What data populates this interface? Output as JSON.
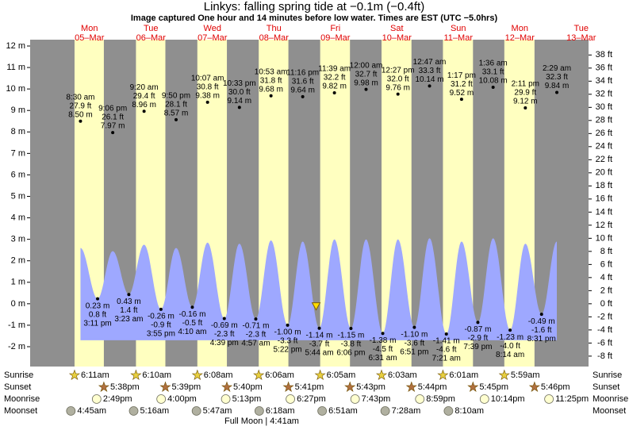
{
  "chart_data": {
    "type": "tide",
    "title": "Linkys: falling  spring tide at −0.1m (−0.4ft)",
    "subtitle": "Image captured One hour and 14 minutes before low water. Times are EST (UTC −5.0hrs)",
    "ylim": [
      -2,
      12
    ],
    "yticks": [
      {
        "value": -2,
        "label": "-2 m"
      },
      {
        "value": -1,
        "label": "-1 m"
      },
      {
        "value": 0,
        "label": "0 m"
      },
      {
        "value": 1,
        "label": "1 m"
      },
      {
        "value": 2,
        "label": "2 m"
      },
      {
        "value": 3,
        "label": "3 m"
      },
      {
        "value": 4,
        "label": "4 m"
      },
      {
        "value": 5,
        "label": "5 m"
      },
      {
        "value": 6,
        "label": "6 m"
      },
      {
        "value": 7,
        "label": "7 m"
      },
      {
        "value": 8,
        "label": "8 m"
      },
      {
        "value": 9,
        "label": "9 m"
      },
      {
        "value": 10,
        "label": "10 m"
      },
      {
        "value": 11,
        "label": "11 m"
      },
      {
        "value": 12,
        "label": "12 m"
      }
    ],
    "y2lim": [
      -6.56,
      39.37
    ],
    "y2ticks": [
      {
        "value": -8,
        "label": "-8 ft"
      },
      {
        "value": -6,
        "label": "-6 ft"
      },
      {
        "value": -4,
        "label": "-4 ft"
      },
      {
        "value": -2,
        "label": "-2 ft"
      },
      {
        "value": 0,
        "label": "0 ft"
      },
      {
        "value": 2,
        "label": "2 ft"
      },
      {
        "value": 4,
        "label": "4 ft"
      },
      {
        "value": 6,
        "label": "6 ft"
      },
      {
        "value": 8,
        "label": "8 ft"
      },
      {
        "value": 10,
        "label": "10 ft"
      },
      {
        "value": 12,
        "label": "12 ft"
      },
      {
        "value": 14,
        "label": "14 ft"
      },
      {
        "value": 16,
        "label": "16 ft"
      },
      {
        "value": 18,
        "label": "18 ft"
      },
      {
        "value": 20,
        "label": "20 ft"
      },
      {
        "value": 22,
        "label": "22 ft"
      },
      {
        "value": 24,
        "label": "24 ft"
      },
      {
        "value": 26,
        "label": "26 ft"
      },
      {
        "value": 28,
        "label": "28 ft"
      },
      {
        "value": 30,
        "label": "30 ft"
      },
      {
        "value": 32,
        "label": "32 ft"
      },
      {
        "value": 34,
        "label": "34 ft"
      },
      {
        "value": 36,
        "label": "36 ft"
      },
      {
        "value": 38,
        "label": "38 ft"
      }
    ],
    "curve_color": "#9ea8ff",
    "curve_floor": -1.7,
    "day_color": "#ffffc0",
    "night_color": "#8f8f8f",
    "rows": [
      "Sunrise",
      "Sunset",
      "Moonrise",
      "Moonset"
    ],
    "footer_note": "Full Moon | 4:41am",
    "days": [
      {
        "name": "Mon",
        "date": "05–Mar",
        "sunrise": "6:11am",
        "sunset": "5:38pm",
        "moonrise": "2:49pm",
        "moonset": "4:45am",
        "tides": [
          {
            "time": "8:30 am",
            "ft": "27.9 ft",
            "m": 8.5,
            "m_label": "8.50 m",
            "curve_m": 2.6
          },
          {
            "time": "3:11 pm",
            "ft": "0.8 ft",
            "m": 0.23,
            "m_label": "0.23 m"
          },
          {
            "time": "9:06 pm",
            "ft": "26.1 ft",
            "m": 7.97,
            "m_label": "7.97 m",
            "curve_m": 2.45
          }
        ]
      },
      {
        "name": "Tue",
        "date": "06–Mar",
        "sunrise": "6:10am",
        "sunset": "5:39pm",
        "moonrise": "4:00pm",
        "moonset": "5:16am",
        "tides": [
          {
            "time": "3:23 am",
            "ft": "1.4 ft",
            "m": 0.43,
            "m_label": "0.43 m"
          },
          {
            "time": "9:20 am",
            "ft": "29.4 ft",
            "m": 8.96,
            "m_label": "8.96 m",
            "curve_m": 2.75
          },
          {
            "time": "3:55 pm",
            "ft": "-0.9 ft",
            "m": -0.26,
            "m_label": "-0.26 m"
          },
          {
            "time": "9:50 pm",
            "ft": "28.1 ft",
            "m": 8.57,
            "m_label": "8.57 m",
            "curve_m": 2.6
          }
        ]
      },
      {
        "name": "Wed",
        "date": "07–Mar",
        "sunrise": "6:08am",
        "sunset": "5:40pm",
        "moonrise": "5:13pm",
        "moonset": "5:47am",
        "tides": [
          {
            "time": "4:10 am",
            "ft": "-0.5 ft",
            "m": -0.16,
            "m_label": "-0.16 m"
          },
          {
            "time": "10:07 am",
            "ft": "30.8 ft",
            "m": 9.38,
            "m_label": "9.38 m",
            "curve_m": 2.85
          },
          {
            "time": "4:39 pm",
            "ft": "-2.3 ft",
            "m": -0.69,
            "m_label": "-0.69 m"
          },
          {
            "time": "10:33 pm",
            "ft": "30.0 ft",
            "m": 9.14,
            "m_label": "9.14 m",
            "curve_m": 2.8
          }
        ]
      },
      {
        "name": "Thu",
        "date": "08–Mar",
        "sunrise": "6:06am",
        "sunset": "5:41pm",
        "moonrise": "6:27pm",
        "moonset": "6:18am",
        "tides": [
          {
            "time": "4:57 am",
            "ft": "-2.3 ft",
            "m": -0.71,
            "m_label": "-0.71 m"
          },
          {
            "time": "10:53 am",
            "ft": "31.8 ft",
            "m": 9.68,
            "m_label": "9.68 m",
            "curve_m": 2.95
          },
          {
            "time": "5:22 pm",
            "ft": "-3.3 ft",
            "m": -1.0,
            "m_label": "-1.00 m"
          },
          {
            "time": "11:16 pm",
            "ft": "31.6 ft",
            "m": 9.64,
            "m_label": "9.64 m",
            "curve_m": 2.9
          }
        ]
      },
      {
        "name": "Fri",
        "date": "09–Mar",
        "sunrise": "6:05am",
        "sunset": "5:43pm",
        "moonrise": "7:43pm",
        "moonset": "6:51am",
        "now": {
          "time": "4:30 am",
          "m": -0.1
        },
        "tides": [
          {
            "time": "5:44 am",
            "ft": "-3.7 ft",
            "m": -1.14,
            "m_label": "-1.14 m"
          },
          {
            "time": "11:39 am",
            "ft": "32.2 ft",
            "m": 9.82,
            "m_label": "9.82 m",
            "curve_m": 3.0
          },
          {
            "time": "6:06 pm",
            "ft": "-3.8 ft",
            "m": -1.15,
            "m_label": "-1.15 m"
          }
        ]
      },
      {
        "name": "Sat",
        "date": "10–Mar",
        "sunrise": "6:03am",
        "sunset": "5:44pm",
        "moonrise": "8:59pm",
        "moonset": "7:28am",
        "tides": [
          {
            "time": "12:00 am",
            "ft": "32.7 ft",
            "m": 9.98,
            "m_label": "9.98 m",
            "curve_m": 3.0
          },
          {
            "time": "6:31 am",
            "ft": "-4.5 ft",
            "m": -1.38,
            "m_label": "-1.38 m"
          },
          {
            "time": "12:27 pm",
            "ft": "32.0 ft",
            "m": 9.76,
            "m_label": "9.76 m",
            "curve_m": 3.0
          },
          {
            "time": "6:51 pm",
            "ft": "-3.6 ft",
            "m": -1.1,
            "m_label": "-1.10 m"
          }
        ]
      },
      {
        "name": "Sun",
        "date": "11–Mar",
        "sunrise": "6:01am",
        "sunset": "5:45pm",
        "moonrise": "10:14pm",
        "moonset": "8:10am",
        "tides": [
          {
            "time": "12:47 am",
            "ft": "33.3 ft",
            "m": 10.14,
            "m_label": "10.14 m",
            "curve_m": 3.05
          },
          {
            "time": "7:21 am",
            "ft": "-4.6 ft",
            "m": -1.41,
            "m_label": "-1.41 m"
          },
          {
            "time": "1:17 pm",
            "ft": "31.2 ft",
            "m": 9.52,
            "m_label": "9.52 m",
            "curve_m": 2.9
          },
          {
            "time": "7:39 pm",
            "ft": "-2.9 ft",
            "m": -0.87,
            "m_label": "-0.87 m"
          }
        ]
      },
      {
        "name": "Mon",
        "date": "12–Mar",
        "sunrise": "5:59am",
        "sunset": "5:46pm",
        "moonrise": "11:25pm",
        "tides": [
          {
            "time": "1:36 am",
            "ft": "33.1 ft",
            "m": 10.08,
            "m_label": "10.08 m",
            "curve_m": 3.05
          },
          {
            "time": "8:14 am",
            "ft": "-4.0 ft",
            "m": -1.23,
            "m_label": "-1.23 m"
          },
          {
            "time": "2:11 pm",
            "ft": "29.9 ft",
            "m": 9.12,
            "m_label": "9.12 m",
            "curve_m": 2.8
          },
          {
            "time": "8:31 pm",
            "ft": "-1.6 ft",
            "m": -0.49,
            "m_label": "-0.49 m"
          }
        ]
      },
      {
        "name": "Tue",
        "date": "13–Mar",
        "tides": [
          {
            "time": "2:29 am",
            "ft": "32.3 ft",
            "m": 9.84,
            "m_label": "9.84 m",
            "curve_m": 2.9
          }
        ]
      }
    ]
  }
}
